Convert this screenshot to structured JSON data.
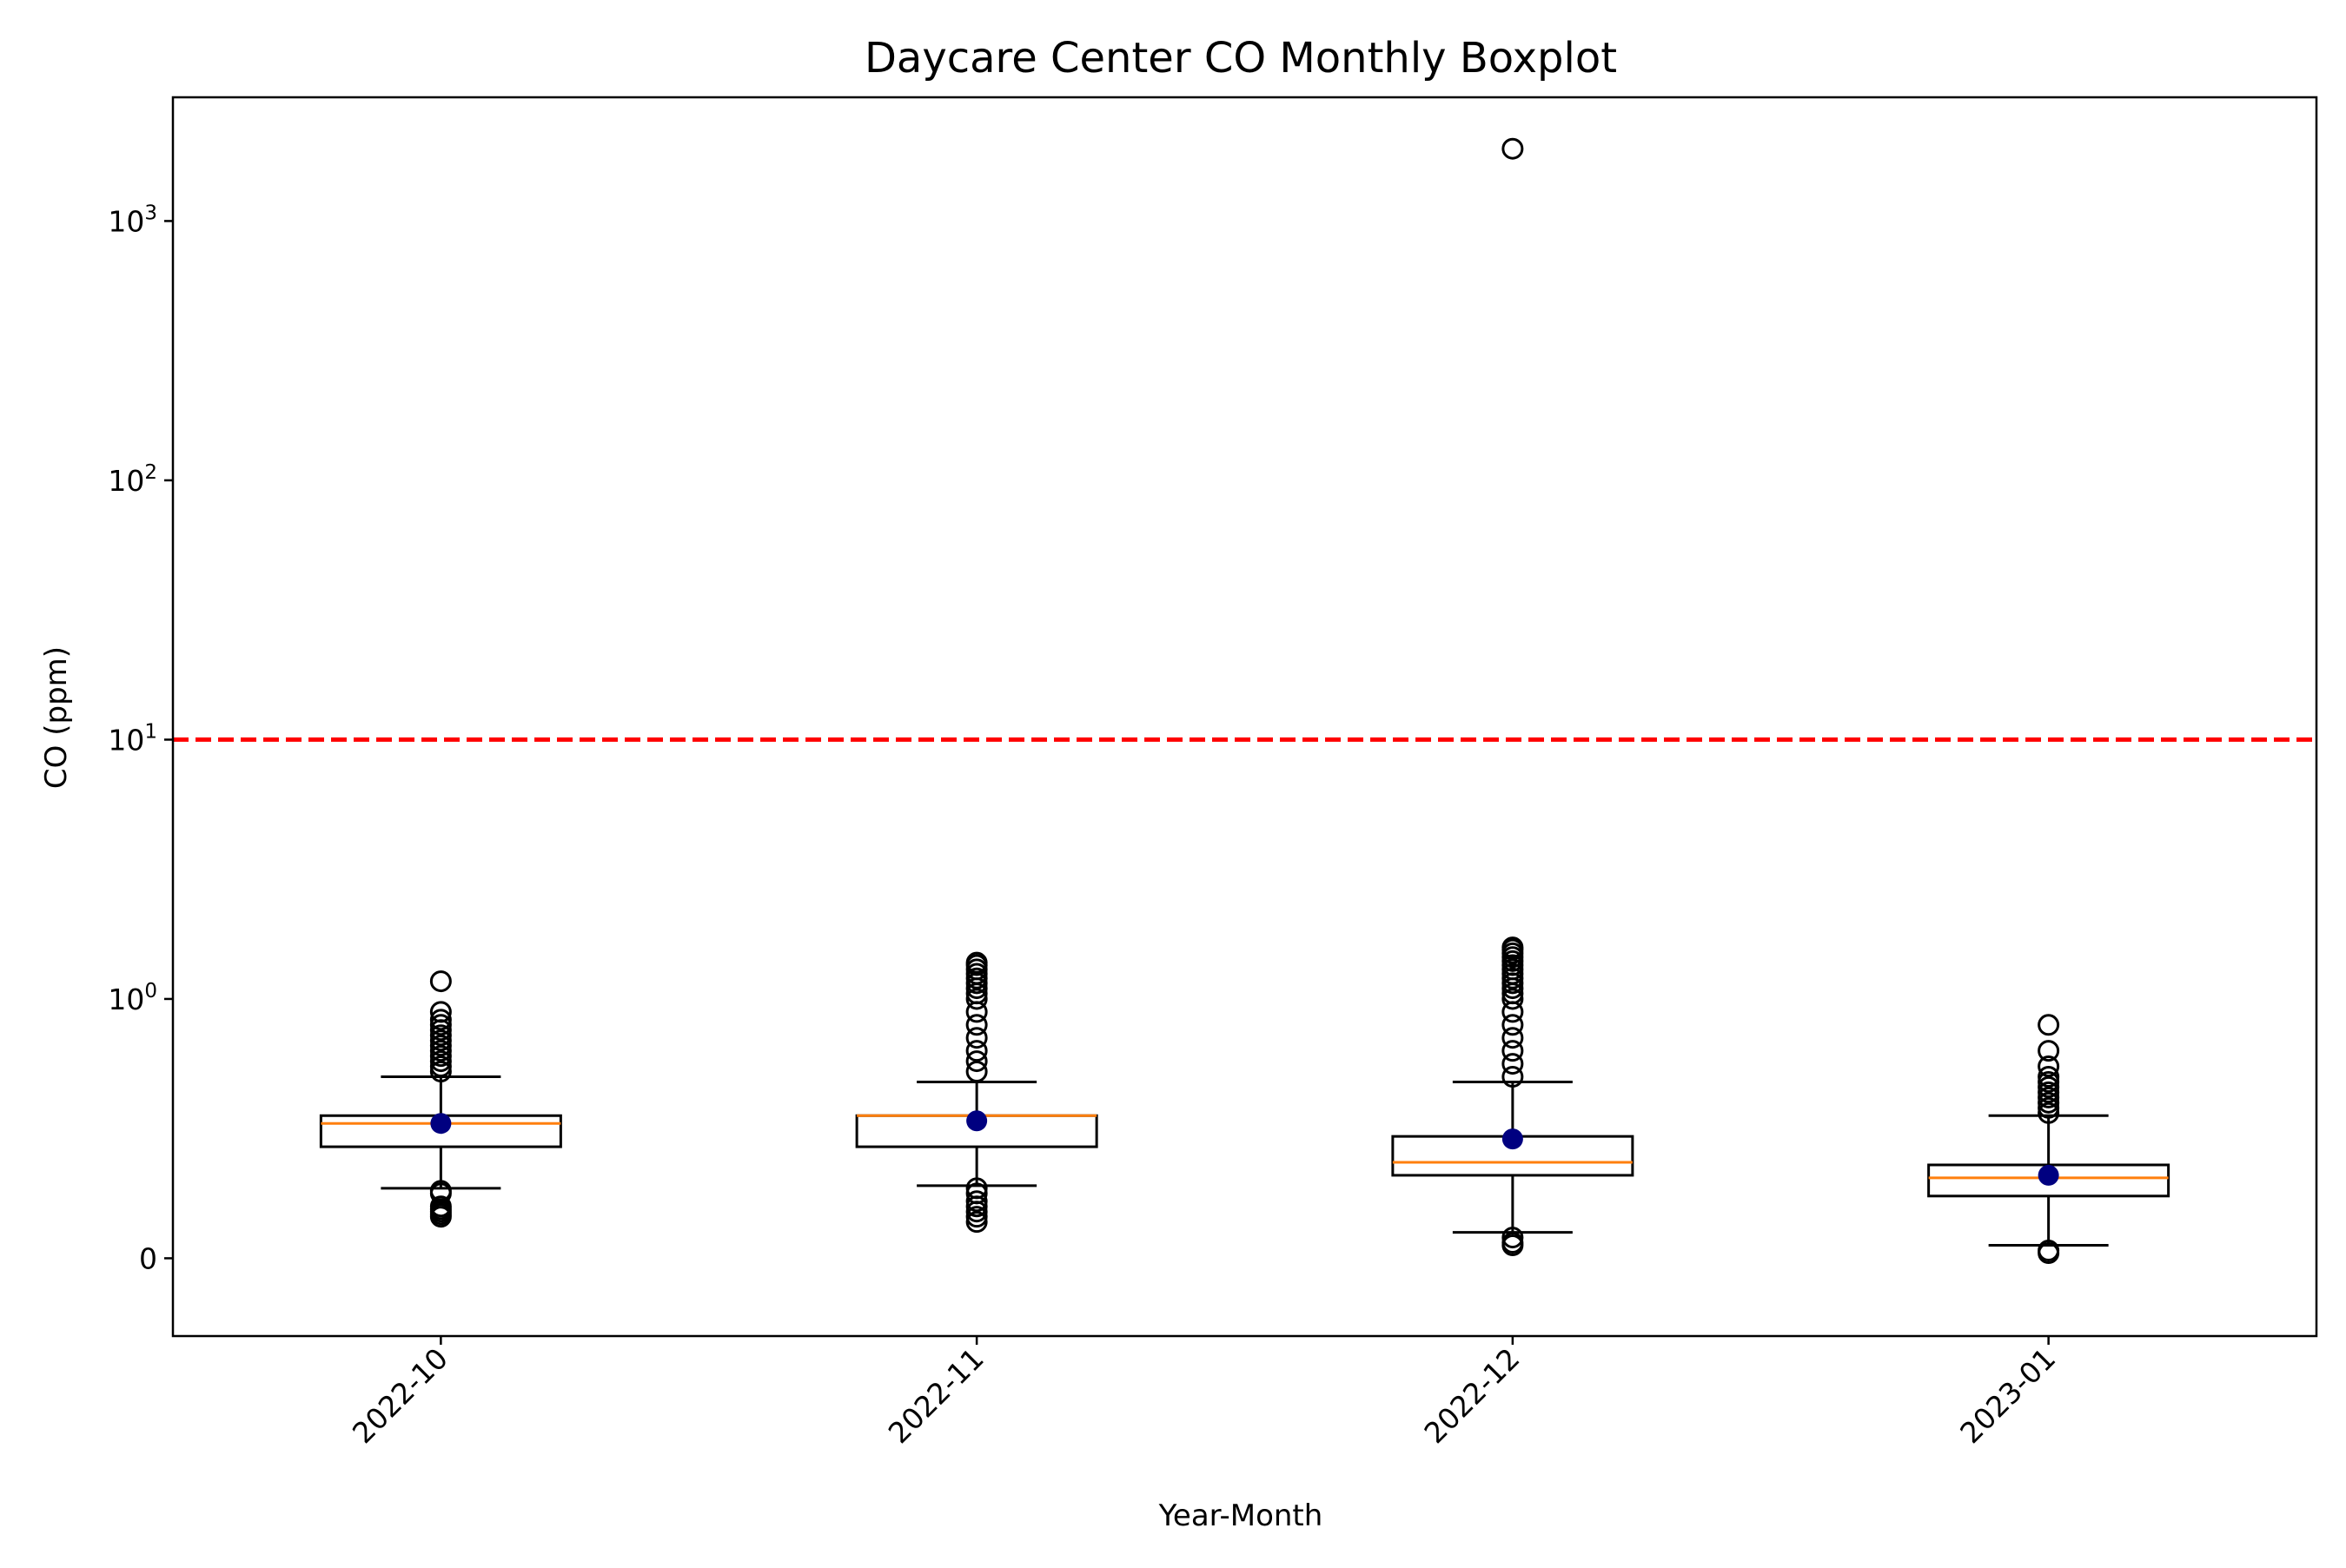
{
  "chart_data": {
    "type": "boxplot",
    "title": "Daycare Center CO Monthly Boxplot",
    "xlabel": "Year-Month",
    "ylabel": "CO (ppm)",
    "y_scale": "symlog",
    "ylim": [
      -0.3,
      3000
    ],
    "yticks": [
      {
        "value": 0,
        "base": "0",
        "exp": ""
      },
      {
        "value": 1,
        "base": "10",
        "exp": "0"
      },
      {
        "value": 10,
        "base": "10",
        "exp": "1"
      },
      {
        "value": 100,
        "base": "10",
        "exp": "2"
      },
      {
        "value": 1000,
        "base": "10",
        "exp": "3"
      }
    ],
    "grid": false,
    "categories": [
      "2022-10",
      "2022-11",
      "2022-12",
      "2023-01"
    ],
    "boxes": [
      {
        "whisker_low": 0.27,
        "q1": 0.43,
        "median": 0.52,
        "q3": 0.55,
        "whisker_high": 0.7,
        "mean": 0.52,
        "outliers": [
          0.16,
          0.17,
          0.18,
          0.19,
          0.2,
          0.25,
          0.26,
          0.72,
          0.74,
          0.76,
          0.78,
          0.8,
          0.82,
          0.84,
          0.86,
          0.88,
          0.9,
          0.92,
          0.95,
          1.17
        ]
      },
      {
        "whisker_low": 0.28,
        "q1": 0.43,
        "median": 0.55,
        "q3": 0.55,
        "whisker_high": 0.68,
        "mean": 0.53,
        "outliers": [
          0.14,
          0.16,
          0.18,
          0.2,
          0.22,
          0.25,
          0.27,
          0.72,
          0.76,
          0.8,
          0.85,
          0.9,
          0.95,
          1.0,
          1.05,
          1.1,
          1.15,
          1.2,
          1.25,
          1.3,
          1.35,
          1.38
        ]
      },
      {
        "whisker_low": 0.1,
        "q1": 0.32,
        "median": 0.37,
        "q3": 0.47,
        "whisker_high": 0.68,
        "mean": 0.46,
        "outliers": [
          0.05,
          0.06,
          0.08,
          0.7,
          0.75,
          0.8,
          0.85,
          0.9,
          0.95,
          1.0,
          1.05,
          1.1,
          1.15,
          1.2,
          1.25,
          1.3,
          1.35,
          1.4,
          1.45,
          1.5,
          1.55,
          1.58,
          1900
        ]
      },
      {
        "whisker_low": 0.05,
        "q1": 0.24,
        "median": 0.31,
        "q3": 0.36,
        "whisker_high": 0.55,
        "mean": 0.32,
        "outliers": [
          0.02,
          0.03,
          0.56,
          0.58,
          0.6,
          0.62,
          0.64,
          0.66,
          0.68,
          0.7,
          0.74,
          0.8,
          0.9
        ]
      }
    ],
    "reference_line": {
      "value": 10,
      "color": "#ff0000",
      "style": "dashed"
    },
    "colors": {
      "box_edge": "#000000",
      "median": "#ff7f0e",
      "mean_marker": "#000080",
      "outlier_edge": "#000000"
    }
  }
}
